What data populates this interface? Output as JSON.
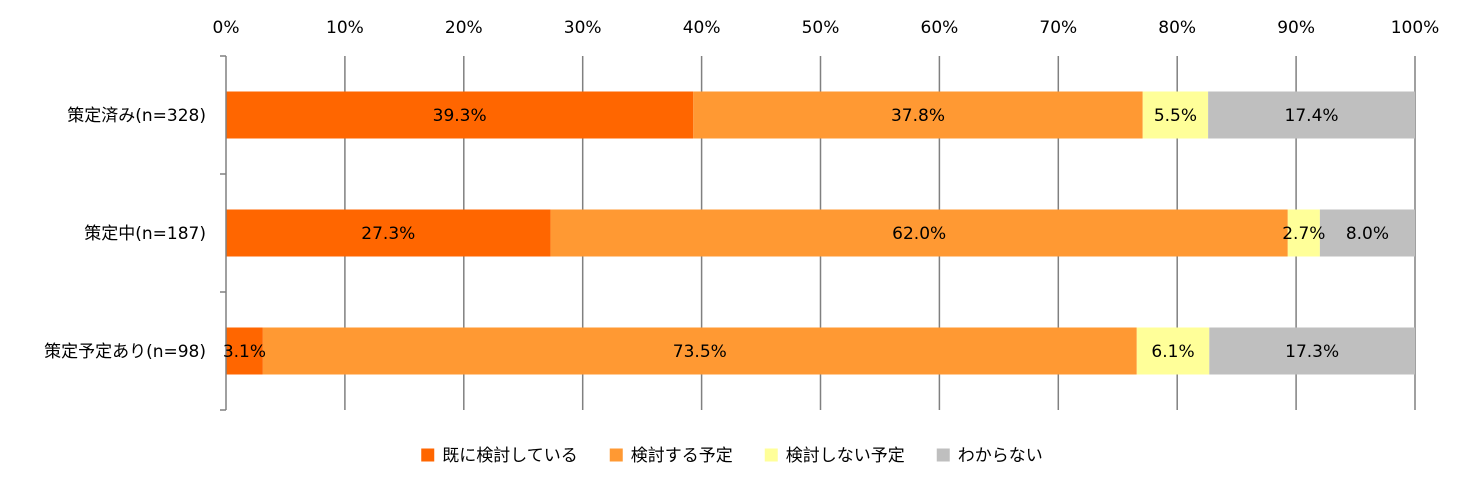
{
  "chart_data": {
    "type": "bar",
    "orientation": "horizontal",
    "stacked": true,
    "percent": true,
    "title": "",
    "xlabel": "",
    "ylabel": "",
    "xlim": [
      0,
      100
    ],
    "x_ticks": [
      "0%",
      "10%",
      "20%",
      "30%",
      "40%",
      "50%",
      "60%",
      "70%",
      "80%",
      "90%",
      "100%"
    ],
    "grid": "vertical",
    "legend_position": "bottom",
    "categories": [
      "策定済み(n=328)",
      "策定中(n=187)",
      "策定予定あり(n=98)"
    ],
    "series": [
      {
        "name": "既に検討している",
        "color": "#ff6600",
        "values": [
          39.3,
          27.3,
          3.1
        ],
        "labels": [
          "39.3%",
          "27.3%",
          "3.1%"
        ]
      },
      {
        "name": "検討する予定",
        "color": "#ff9933",
        "values": [
          37.8,
          62.0,
          73.5
        ],
        "labels": [
          "37.8%",
          "62.0%",
          "73.5%"
        ]
      },
      {
        "name": "検討しない予定",
        "color": "#ffff99",
        "values": [
          5.5,
          2.7,
          6.1
        ],
        "labels": [
          "5.5%",
          "2.7%",
          "6.1%"
        ]
      },
      {
        "name": "わからない",
        "color": "#bfbfbf",
        "values": [
          17.4,
          8.0,
          17.3
        ],
        "labels": [
          "17.4%",
          "8.0%",
          "17.3%"
        ]
      }
    ]
  }
}
